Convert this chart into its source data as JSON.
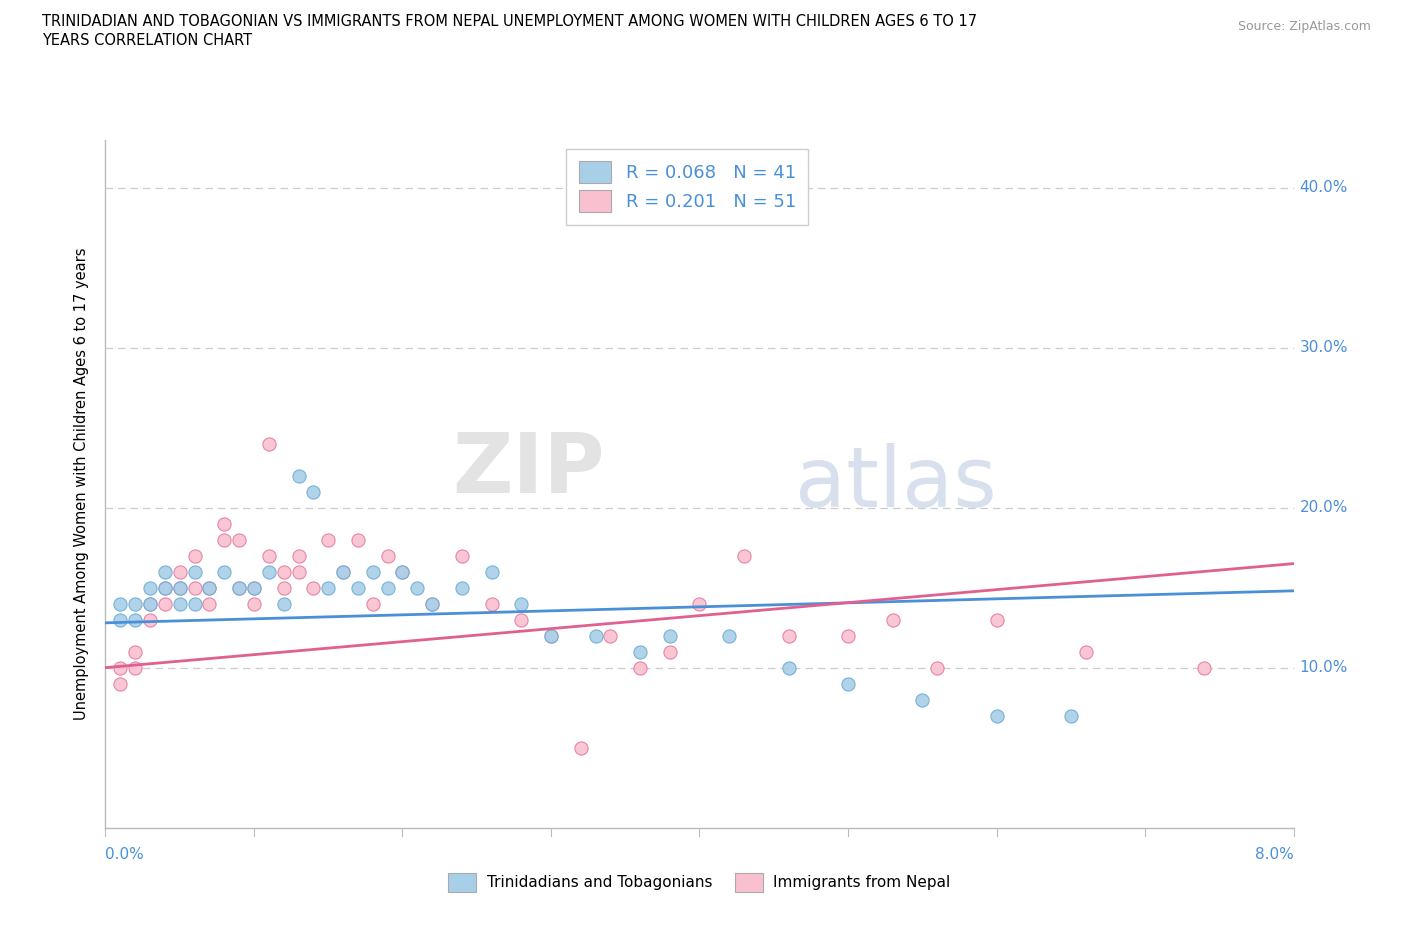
{
  "title_line1": "TRINIDADIAN AND TOBAGONIAN VS IMMIGRANTS FROM NEPAL UNEMPLOYMENT AMONG WOMEN WITH CHILDREN AGES 6 TO 17",
  "title_line2": "YEARS CORRELATION CHART",
  "source": "Source: ZipAtlas.com",
  "ylabel": "Unemployment Among Women with Children Ages 6 to 17 years",
  "watermark_part1": "ZIP",
  "watermark_part2": "atlas",
  "blue_color": "#a8cfe8",
  "blue_edge_color": "#6aaed6",
  "pink_color": "#f9c0d0",
  "pink_edge_color": "#e87a9f",
  "blue_line_color": "#4a90d9",
  "pink_line_color": "#e06090",
  "axis_label_color": "#4a90d9",
  "grid_color": "#cccccc",
  "x_min": 0.0,
  "x_max": 0.08,
  "y_min": 0.0,
  "y_max": 0.43,
  "yticks": [
    0.1,
    0.2,
    0.3,
    0.4
  ],
  "ytick_labels": [
    "10.0%",
    "20.0%",
    "30.0%",
    "40.0%"
  ],
  "blue_r": "0.068",
  "blue_n": "41",
  "pink_r": "0.201",
  "pink_n": "51",
  "blue_trend_x": [
    0.0,
    0.08
  ],
  "blue_trend_y": [
    0.128,
    0.148
  ],
  "pink_trend_x": [
    0.0,
    0.08
  ],
  "pink_trend_y": [
    0.1,
    0.165
  ],
  "bottom_label1": "Trinidadians and Tobagonians",
  "bottom_label2": "Immigrants from Nepal",
  "blue_scatter": [
    [
      0.001,
      0.14
    ],
    [
      0.001,
      0.13
    ],
    [
      0.002,
      0.14
    ],
    [
      0.002,
      0.13
    ],
    [
      0.003,
      0.15
    ],
    [
      0.003,
      0.14
    ],
    [
      0.004,
      0.16
    ],
    [
      0.004,
      0.15
    ],
    [
      0.005,
      0.15
    ],
    [
      0.005,
      0.14
    ],
    [
      0.006,
      0.16
    ],
    [
      0.006,
      0.14
    ],
    [
      0.007,
      0.15
    ],
    [
      0.008,
      0.16
    ],
    [
      0.009,
      0.15
    ],
    [
      0.01,
      0.15
    ],
    [
      0.011,
      0.16
    ],
    [
      0.012,
      0.14
    ],
    [
      0.013,
      0.22
    ],
    [
      0.014,
      0.21
    ],
    [
      0.015,
      0.15
    ],
    [
      0.016,
      0.16
    ],
    [
      0.017,
      0.15
    ],
    [
      0.018,
      0.16
    ],
    [
      0.019,
      0.15
    ],
    [
      0.02,
      0.16
    ],
    [
      0.021,
      0.15
    ],
    [
      0.022,
      0.14
    ],
    [
      0.024,
      0.15
    ],
    [
      0.026,
      0.16
    ],
    [
      0.028,
      0.14
    ],
    [
      0.03,
      0.12
    ],
    [
      0.033,
      0.12
    ],
    [
      0.036,
      0.11
    ],
    [
      0.038,
      0.12
    ],
    [
      0.042,
      0.12
    ],
    [
      0.046,
      0.1
    ],
    [
      0.05,
      0.09
    ],
    [
      0.055,
      0.08
    ],
    [
      0.06,
      0.07
    ],
    [
      0.065,
      0.07
    ]
  ],
  "pink_scatter": [
    [
      0.001,
      0.09
    ],
    [
      0.001,
      0.1
    ],
    [
      0.002,
      0.1
    ],
    [
      0.002,
      0.11
    ],
    [
      0.003,
      0.14
    ],
    [
      0.003,
      0.13
    ],
    [
      0.004,
      0.15
    ],
    [
      0.004,
      0.14
    ],
    [
      0.005,
      0.16
    ],
    [
      0.005,
      0.15
    ],
    [
      0.006,
      0.17
    ],
    [
      0.006,
      0.15
    ],
    [
      0.007,
      0.15
    ],
    [
      0.007,
      0.14
    ],
    [
      0.008,
      0.19
    ],
    [
      0.008,
      0.18
    ],
    [
      0.009,
      0.18
    ],
    [
      0.009,
      0.15
    ],
    [
      0.01,
      0.14
    ],
    [
      0.01,
      0.15
    ],
    [
      0.011,
      0.24
    ],
    [
      0.011,
      0.17
    ],
    [
      0.012,
      0.16
    ],
    [
      0.012,
      0.15
    ],
    [
      0.013,
      0.17
    ],
    [
      0.013,
      0.16
    ],
    [
      0.014,
      0.15
    ],
    [
      0.015,
      0.18
    ],
    [
      0.016,
      0.16
    ],
    [
      0.017,
      0.18
    ],
    [
      0.018,
      0.14
    ],
    [
      0.019,
      0.17
    ],
    [
      0.02,
      0.16
    ],
    [
      0.022,
      0.14
    ],
    [
      0.024,
      0.17
    ],
    [
      0.026,
      0.14
    ],
    [
      0.028,
      0.13
    ],
    [
      0.03,
      0.12
    ],
    [
      0.032,
      0.05
    ],
    [
      0.034,
      0.12
    ],
    [
      0.036,
      0.1
    ],
    [
      0.038,
      0.11
    ],
    [
      0.04,
      0.14
    ],
    [
      0.043,
      0.17
    ],
    [
      0.046,
      0.12
    ],
    [
      0.05,
      0.12
    ],
    [
      0.053,
      0.13
    ],
    [
      0.056,
      0.1
    ],
    [
      0.06,
      0.13
    ],
    [
      0.066,
      0.11
    ],
    [
      0.074,
      0.1
    ]
  ]
}
